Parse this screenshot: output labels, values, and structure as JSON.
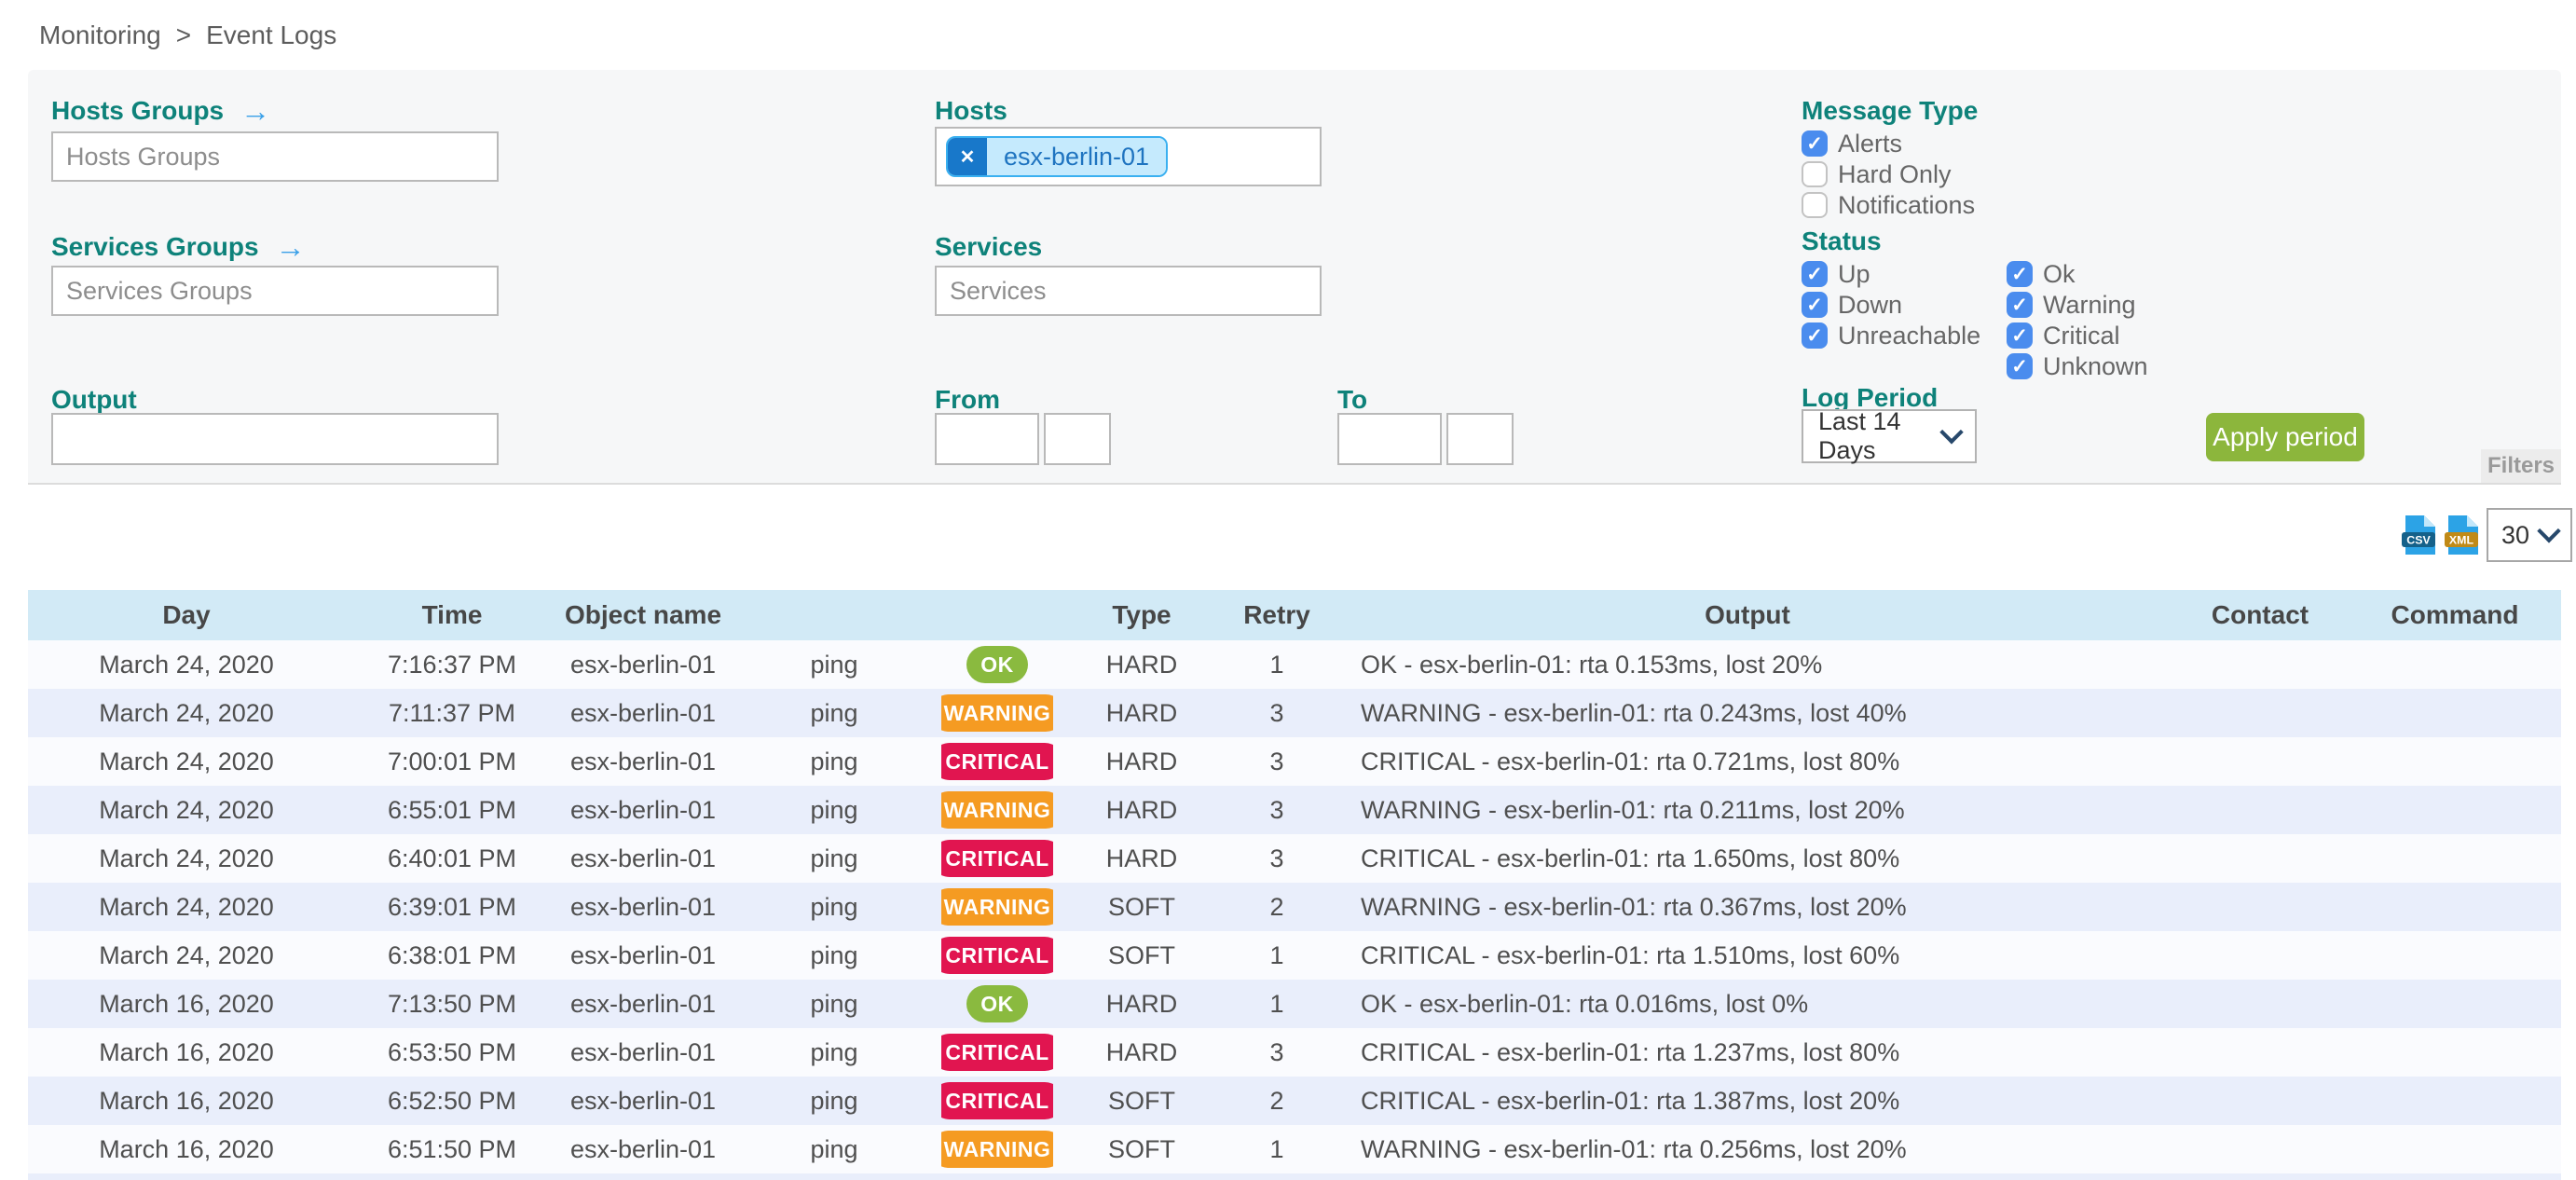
{
  "breadcrumb": {
    "items": [
      "Monitoring",
      "Event Logs"
    ],
    "separator": ">"
  },
  "filters": {
    "hosts_groups": {
      "label": "Hosts Groups",
      "placeholder": "Hosts Groups",
      "value": ""
    },
    "services_groups": {
      "label": "Services Groups",
      "placeholder": "Services Groups",
      "value": ""
    },
    "output": {
      "label": "Output",
      "value": ""
    },
    "hosts": {
      "label": "Hosts",
      "chips": [
        "esx-berlin-01"
      ]
    },
    "services": {
      "label": "Services",
      "placeholder": "Services",
      "value": ""
    },
    "from": {
      "label": "From",
      "date": "",
      "time": ""
    },
    "to": {
      "label": "To",
      "date": "",
      "time": ""
    },
    "message_type": {
      "label": "Message Type",
      "options": [
        {
          "label": "Alerts",
          "checked": true
        },
        {
          "label": "Hard Only",
          "checked": false
        },
        {
          "label": "Notifications",
          "checked": false
        }
      ]
    },
    "status": {
      "label": "Status",
      "col1": [
        {
          "label": "Up",
          "checked": true
        },
        {
          "label": "Down",
          "checked": true
        },
        {
          "label": "Unreachable",
          "checked": true
        }
      ],
      "col2": [
        {
          "label": "Ok",
          "checked": true
        },
        {
          "label": "Warning",
          "checked": true
        },
        {
          "label": "Critical",
          "checked": true
        },
        {
          "label": "Unknown",
          "checked": true
        }
      ]
    },
    "log_period": {
      "label": "Log Period",
      "selected": "Last 14 Days"
    },
    "apply_button": "Apply period",
    "filters_tab": "Filters"
  },
  "toolbar": {
    "export_csv": "CSV",
    "export_xml": "XML",
    "page_size": "30"
  },
  "table": {
    "columns": [
      "Day",
      "Time",
      "Object name",
      "",
      "",
      "Type",
      "Retry",
      "Output",
      "Contact",
      "Command"
    ],
    "rows": [
      {
        "day": "March 24, 2020",
        "time": "7:16:37 PM",
        "object": "esx-berlin-01",
        "service": "ping",
        "status": "OK",
        "type": "HARD",
        "retry": "1",
        "output": "OK - esx-berlin-01: rta 0.153ms, lost 20%",
        "contact": "",
        "command": ""
      },
      {
        "day": "March 24, 2020",
        "time": "7:11:37 PM",
        "object": "esx-berlin-01",
        "service": "ping",
        "status": "WARNING",
        "type": "HARD",
        "retry": "3",
        "output": "WARNING - esx-berlin-01: rta 0.243ms, lost 40%",
        "contact": "",
        "command": ""
      },
      {
        "day": "March 24, 2020",
        "time": "7:00:01 PM",
        "object": "esx-berlin-01",
        "service": "ping",
        "status": "CRITICAL",
        "type": "HARD",
        "retry": "3",
        "output": "CRITICAL - esx-berlin-01: rta 0.721ms, lost 80%",
        "contact": "",
        "command": ""
      },
      {
        "day": "March 24, 2020",
        "time": "6:55:01 PM",
        "object": "esx-berlin-01",
        "service": "ping",
        "status": "WARNING",
        "type": "HARD",
        "retry": "3",
        "output": "WARNING - esx-berlin-01: rta 0.211ms, lost 20%",
        "contact": "",
        "command": ""
      },
      {
        "day": "March 24, 2020",
        "time": "6:40:01 PM",
        "object": "esx-berlin-01",
        "service": "ping",
        "status": "CRITICAL",
        "type": "HARD",
        "retry": "3",
        "output": "CRITICAL - esx-berlin-01: rta 1.650ms, lost 80%",
        "contact": "",
        "command": ""
      },
      {
        "day": "March 24, 2020",
        "time": "6:39:01 PM",
        "object": "esx-berlin-01",
        "service": "ping",
        "status": "WARNING",
        "type": "SOFT",
        "retry": "2",
        "output": "WARNING - esx-berlin-01: rta 0.367ms, lost 20%",
        "contact": "",
        "command": ""
      },
      {
        "day": "March 24, 2020",
        "time": "6:38:01 PM",
        "object": "esx-berlin-01",
        "service": "ping",
        "status": "CRITICAL",
        "type": "SOFT",
        "retry": "1",
        "output": "CRITICAL - esx-berlin-01: rta 1.510ms, lost 60%",
        "contact": "",
        "command": ""
      },
      {
        "day": "March 16, 2020",
        "time": "7:13:50 PM",
        "object": "esx-berlin-01",
        "service": "ping",
        "status": "OK",
        "type": "HARD",
        "retry": "1",
        "output": "OK - esx-berlin-01: rta 0.016ms, lost 0%",
        "contact": "",
        "command": ""
      },
      {
        "day": "March 16, 2020",
        "time": "6:53:50 PM",
        "object": "esx-berlin-01",
        "service": "ping",
        "status": "CRITICAL",
        "type": "HARD",
        "retry": "3",
        "output": "CRITICAL - esx-berlin-01: rta 1.237ms, lost 80%",
        "contact": "",
        "command": ""
      },
      {
        "day": "March 16, 2020",
        "time": "6:52:50 PM",
        "object": "esx-berlin-01",
        "service": "ping",
        "status": "CRITICAL",
        "type": "SOFT",
        "retry": "2",
        "output": "CRITICAL - esx-berlin-01: rta 1.387ms, lost 20%",
        "contact": "",
        "command": ""
      },
      {
        "day": "March 16, 2020",
        "time": "6:51:50 PM",
        "object": "esx-berlin-01",
        "service": "ping",
        "status": "WARNING",
        "type": "SOFT",
        "retry": "1",
        "output": "WARNING - esx-berlin-01: rta 0.256ms, lost 20%",
        "contact": "",
        "command": ""
      }
    ]
  },
  "colors": {
    "label_teal": "#0e827a",
    "accent_blue": "#3aa0e8",
    "checkbox_blue": "#4a8cee",
    "apply_green": "#8cb63c",
    "status_ok": "#8aba3f",
    "status_warning": "#f59b22",
    "status_critical": "#e11550",
    "header_bg": "#d2eaf6",
    "row_even": "#e9eefb",
    "row_odd": "#fafbfe",
    "chip_border": "#3ab0f0",
    "chip_bg": "#c5eafd",
    "chip_text": "#1f74c0",
    "chip_close": "#1878ca",
    "csv_band": "#15618a",
    "xml_band": "#c08a17",
    "file_blue": "#2ca3e6"
  }
}
